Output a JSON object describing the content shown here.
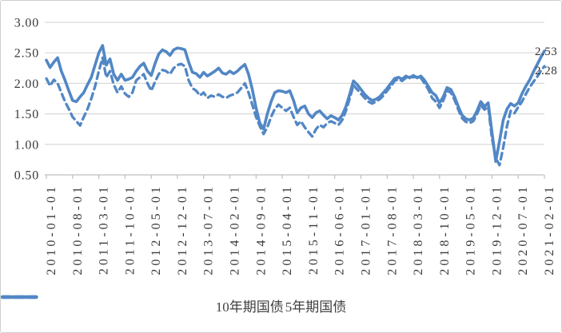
{
  "chart_data": {
    "type": "line",
    "title": "",
    "xlabel": "",
    "ylabel": "",
    "x_axis": {
      "note": "monthly observations from 2010-01 to 2021-02, tick shown every 7 months",
      "tick_interval_months": 7,
      "tick_labels": [
        "2010-01-01",
        "2010-08-01",
        "2011-03-01",
        "2011-10-01",
        "2012-05-01",
        "2012-12-01",
        "2013-07-01",
        "2014-02-01",
        "2014-09-01",
        "2015-04-01",
        "2015-11-01",
        "2016-06-01",
        "2017-01-01",
        "2017-08-01",
        "2018-03-01",
        "2018-10-01",
        "2019-05-01",
        "2019-12-01",
        "2020-07-01",
        "2021-02-01"
      ]
    },
    "y_axis": {
      "values": [
        3.0,
        2.5,
        2.0,
        1.5,
        1.0,
        0.5
      ],
      "labels": [
        "3.00",
        "2.50",
        "2.00",
        "1.50",
        "1.00",
        "0.50"
      ]
    },
    "ylim": [
      0.5,
      3.0
    ],
    "grid": "horizontal",
    "legend_position": "bottom",
    "colors": {
      "line": "#5287c5",
      "gridline": "#d9d9d9",
      "axis": "#bfbfbf",
      "text": "#3a3a3a"
    },
    "series": [
      {
        "name": "10年期国债",
        "style": "solid",
        "end_label": "2.53",
        "values": [
          2.38,
          2.26,
          2.35,
          2.42,
          2.2,
          2.05,
          1.88,
          1.72,
          1.7,
          1.78,
          1.85,
          1.98,
          2.1,
          2.3,
          2.5,
          2.62,
          2.3,
          2.4,
          2.15,
          2.05,
          2.15,
          2.05,
          2.07,
          2.1,
          2.2,
          2.28,
          2.33,
          2.2,
          2.13,
          2.32,
          2.48,
          2.55,
          2.52,
          2.46,
          2.55,
          2.58,
          2.57,
          2.55,
          2.35,
          2.18,
          2.16,
          2.1,
          2.18,
          2.12,
          2.16,
          2.2,
          2.25,
          2.17,
          2.15,
          2.2,
          2.16,
          2.2,
          2.26,
          2.31,
          2.15,
          1.9,
          1.6,
          1.35,
          1.25,
          1.5,
          1.7,
          1.85,
          1.88,
          1.87,
          1.85,
          1.88,
          1.72,
          1.52,
          1.6,
          1.63,
          1.5,
          1.44,
          1.52,
          1.55,
          1.48,
          1.42,
          1.47,
          1.44,
          1.4,
          1.48,
          1.62,
          1.82,
          2.04,
          1.98,
          1.9,
          1.82,
          1.76,
          1.72,
          1.74,
          1.78,
          1.85,
          1.92,
          2.0,
          2.08,
          2.1,
          2.07,
          2.12,
          2.09,
          2.13,
          2.09,
          2.12,
          2.05,
          1.95,
          1.85,
          1.8,
          1.68,
          1.78,
          1.93,
          1.9,
          1.78,
          1.62,
          1.48,
          1.42,
          1.4,
          1.43,
          1.55,
          1.7,
          1.62,
          1.68,
          1.2,
          0.72,
          1.05,
          1.4,
          1.58,
          1.67,
          1.63,
          1.68,
          1.83,
          1.95,
          2.05,
          2.18,
          2.3,
          2.42,
          2.53
        ]
      },
      {
        "name": "5年期国债",
        "style": "dashed",
        "end_label": "2.28",
        "values": [
          2.08,
          1.96,
          2.06,
          2.0,
          1.85,
          1.7,
          1.58,
          1.45,
          1.38,
          1.31,
          1.45,
          1.58,
          1.75,
          1.95,
          2.2,
          2.42,
          2.1,
          2.2,
          1.98,
          1.85,
          1.95,
          1.83,
          1.78,
          1.85,
          2.05,
          2.1,
          2.15,
          2.0,
          1.88,
          2.02,
          2.15,
          2.22,
          2.2,
          2.15,
          2.25,
          2.3,
          2.32,
          2.28,
          2.05,
          1.92,
          1.88,
          1.8,
          1.85,
          1.76,
          1.8,
          1.78,
          1.82,
          1.78,
          1.76,
          1.8,
          1.82,
          1.85,
          1.92,
          2.0,
          1.85,
          1.65,
          1.45,
          1.3,
          1.17,
          1.28,
          1.45,
          1.58,
          1.65,
          1.6,
          1.55,
          1.6,
          1.45,
          1.32,
          1.38,
          1.28,
          1.2,
          1.13,
          1.25,
          1.32,
          1.28,
          1.35,
          1.38,
          1.35,
          1.32,
          1.4,
          1.55,
          1.75,
          1.97,
          1.9,
          1.83,
          1.76,
          1.7,
          1.67,
          1.7,
          1.74,
          1.8,
          1.88,
          1.95,
          2.04,
          2.07,
          2.04,
          2.09,
          2.11,
          2.1,
          2.11,
          2.09,
          2.0,
          1.9,
          1.76,
          1.7,
          1.6,
          1.72,
          1.88,
          1.85,
          1.73,
          1.57,
          1.43,
          1.37,
          1.35,
          1.38,
          1.5,
          1.64,
          1.57,
          1.62,
          1.1,
          0.78,
          0.66,
          0.95,
          1.3,
          1.55,
          1.51,
          1.61,
          1.7,
          1.82,
          1.93,
          2.02,
          2.1,
          2.2,
          2.28
        ]
      }
    ]
  }
}
